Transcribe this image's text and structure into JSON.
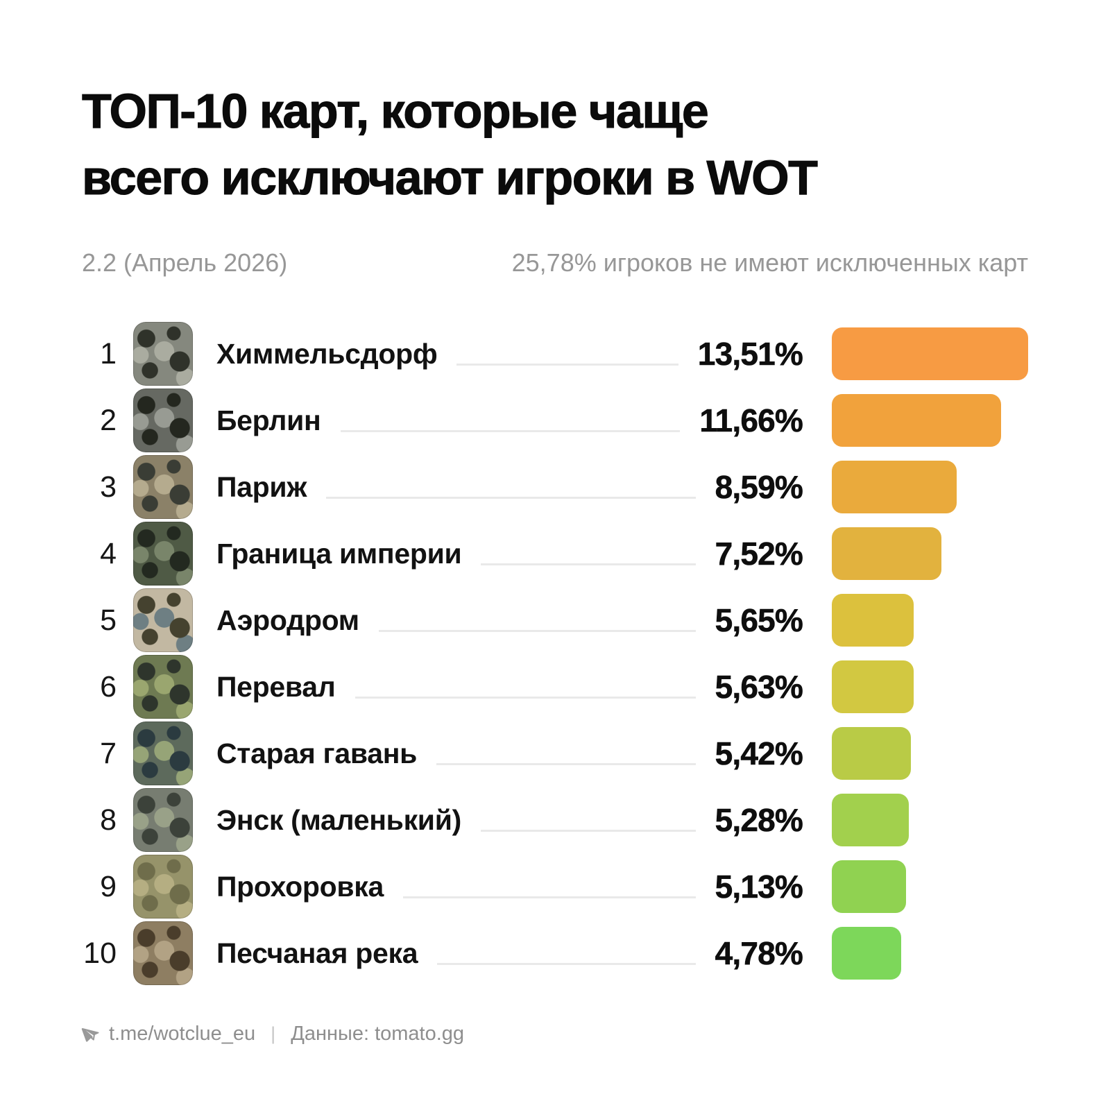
{
  "title": {
    "line1": "ТОП-10 карт, которые чаще",
    "line2": "всего исключают игроки в WOT"
  },
  "subtitle": {
    "version": "2.2 (Апрель 2026)",
    "note": "25,78% игроков не имеют исключенных карт"
  },
  "rows": [
    {
      "rank": "1",
      "name": "Химмельсдорф",
      "percent": "13,51%",
      "value": 13.51,
      "bar_color": "#F79B43",
      "thumb": {
        "base": "#85887e",
        "dark": "#2f322a",
        "accent": "#aaaca0"
      }
    },
    {
      "rank": "2",
      "name": "Берлин",
      "percent": "11,66%",
      "value": 11.66,
      "bar_color": "#F1A23C",
      "thumb": {
        "base": "#666962",
        "dark": "#24271f",
        "accent": "#989b93"
      }
    },
    {
      "rank": "3",
      "name": "Париж",
      "percent": "8,59%",
      "value": 8.59,
      "bar_color": "#EAAA3C",
      "thumb": {
        "base": "#8b8168",
        "dark": "#3a3d35",
        "accent": "#b5ab8e"
      }
    },
    {
      "rank": "4",
      "name": "Граница империи",
      "percent": "7,52%",
      "value": 7.52,
      "bar_color": "#E2B23E",
      "thumb": {
        "base": "#4f5a45",
        "dark": "#232920",
        "accent": "#79856a"
      }
    },
    {
      "rank": "5",
      "name": "Аэродром",
      "percent": "5,65%",
      "value": 5.65,
      "bar_color": "#DCC13D",
      "thumb": {
        "base": "#c2b8a2",
        "dark": "#45422f",
        "accent": "#6e7f83"
      }
    },
    {
      "rank": "6",
      "name": "Перевал",
      "percent": "5,63%",
      "value": 5.63,
      "bar_color": "#D2C841",
      "thumb": {
        "base": "#6e7a52",
        "dark": "#2e352c",
        "accent": "#9aa66f"
      }
    },
    {
      "rank": "7",
      "name": "Старая гавань",
      "percent": "5,42%",
      "value": 5.42,
      "bar_color": "#B9CB46",
      "thumb": {
        "base": "#5d6a5c",
        "dark": "#2b3b40",
        "accent": "#96a477"
      }
    },
    {
      "rank": "8",
      "name": "Энск (маленький)",
      "percent": "5,28%",
      "value": 5.28,
      "bar_color": "#A2D04D",
      "thumb": {
        "base": "#777d71",
        "dark": "#3c423a",
        "accent": "#99a188"
      }
    },
    {
      "rank": "9",
      "name": "Прохоровка",
      "percent": "5,13%",
      "value": 5.13,
      "bar_color": "#90D251",
      "thumb": {
        "base": "#96936a",
        "dark": "#6f6d4b",
        "accent": "#b5ae82"
      }
    },
    {
      "rank": "10",
      "name": "Песчаная река",
      "percent": "4,78%",
      "value": 4.78,
      "bar_color": "#7DD75A",
      "thumb": {
        "base": "#8e7e62",
        "dark": "#4a3d2b",
        "accent": "#b2a284"
      }
    }
  ],
  "footer": {
    "icon": "telegram-plane-icon",
    "channel": "t.me/wotclue_eu",
    "separator": "|",
    "source": "Данные: tomato.gg"
  },
  "chart_data": {
    "type": "bar",
    "orientation": "horizontal",
    "title": "ТОП-10 карт, которые чаще всего исключают игроки в WOT",
    "subtitle_left": "2.2 (Апрель 2026)",
    "subtitle_right": "25,78% игроков не имеют исключенных карт",
    "categories": [
      "Химмельсдорф",
      "Берлин",
      "Париж",
      "Граница империи",
      "Аэродром",
      "Перевал",
      "Старая гавань",
      "Энск (маленький)",
      "Прохоровка",
      "Песчаная река"
    ],
    "values": [
      13.51,
      11.66,
      8.59,
      7.52,
      5.65,
      5.63,
      5.42,
      5.28,
      5.13,
      4.78
    ],
    "value_labels": [
      "13,51%",
      "11,66%",
      "8,59%",
      "7,52%",
      "5,65%",
      "5,63%",
      "5,42%",
      "5,28%",
      "5,13%",
      "4,78%"
    ],
    "bar_colors": [
      "#F79B43",
      "#F1A23C",
      "#EAAA3C",
      "#E2B23E",
      "#DCC13D",
      "#D2C841",
      "#B9CB46",
      "#A2D04D",
      "#90D251",
      "#7DD75A"
    ],
    "xlim": [
      0,
      13.51
    ],
    "grid": false,
    "legend": false,
    "source": "Данные: tomato.gg"
  }
}
